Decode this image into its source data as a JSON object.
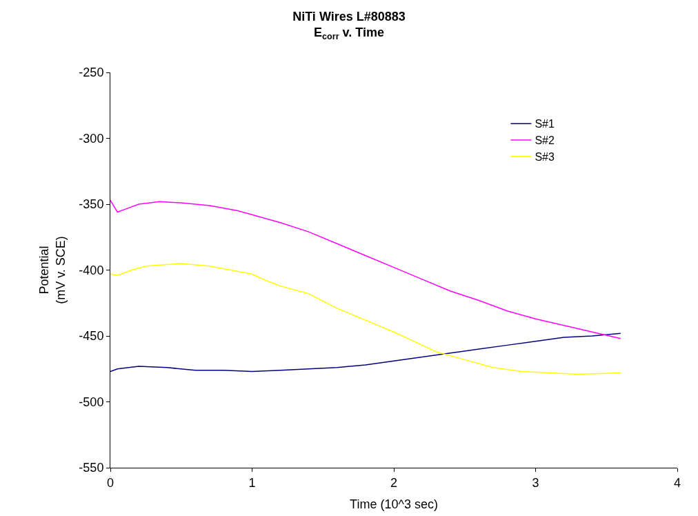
{
  "chart_data": {
    "type": "line",
    "title": "NiTi Wires L#80883\nE$_{corr}$ v. Time",
    "xlabel": "Time (10^3 sec)",
    "ylabel": "Potential\n(mV v. SCE)",
    "xlim": [
      0,
      4
    ],
    "xticks": [
      0,
      1,
      2,
      3,
      4
    ],
    "ylim": [
      -550,
      -250
    ],
    "yticks": [
      -550,
      -500,
      -450,
      -400,
      -350,
      -300,
      -250
    ],
    "grid": false,
    "legend": "top right",
    "marker": "none",
    "line_style": "solid",
    "series": [
      {
        "name": "S#1",
        "color": "#000080",
        "x": [
          0,
          0.05,
          0.2,
          0.4,
          0.6,
          0.8,
          1.0,
          1.2,
          1.4,
          1.6,
          1.8,
          2.0,
          2.2,
          2.4,
          2.6,
          2.8,
          3.0,
          3.2,
          3.4,
          3.6
        ],
        "values": [
          -477,
          -475,
          -473,
          -474,
          -476,
          -476,
          -477,
          -476,
          -475,
          -474,
          -472,
          -469,
          -466,
          -463,
          -460,
          -457,
          -454,
          -451,
          -450,
          -448
        ]
      },
      {
        "name": "S#2",
        "color": "#ff00ff",
        "x": [
          0,
          0.05,
          0.1,
          0.2,
          0.35,
          0.5,
          0.7,
          0.9,
          1.0,
          1.2,
          1.4,
          1.6,
          1.8,
          2.0,
          2.2,
          2.4,
          2.6,
          2.8,
          3.0,
          3.2,
          3.4,
          3.6
        ],
        "values": [
          -347,
          -356,
          -354,
          -350,
          -348,
          -349,
          -351,
          -355,
          -358,
          -364,
          -371,
          -380,
          -389,
          -398,
          -407,
          -416,
          -423,
          -431,
          -437,
          -442,
          -447,
          -452
        ]
      },
      {
        "name": "S#3",
        "color": "#ffff00",
        "x": [
          0,
          0.05,
          0.15,
          0.25,
          0.5,
          0.7,
          0.85,
          1.0,
          1.1,
          1.2,
          1.4,
          1.6,
          1.8,
          2.0,
          2.2,
          2.3,
          2.5,
          2.7,
          2.9,
          3.1,
          3.3,
          3.6
        ],
        "values": [
          -403,
          -404,
          -400,
          -397,
          -395,
          -397,
          -400,
          -403,
          -408,
          -412,
          -418,
          -429,
          -438,
          -447,
          -457,
          -462,
          -468,
          -474,
          -477,
          -478,
          -479,
          -478
        ]
      }
    ]
  }
}
